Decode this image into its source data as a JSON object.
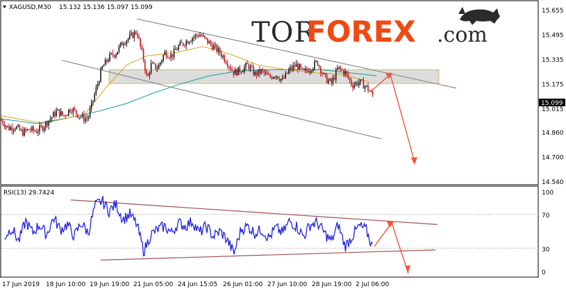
{
  "logo": {
    "part1": "TOR",
    "part2": "FOREX",
    "part3": ".com"
  },
  "chart_data": [
    {
      "type": "candlestick",
      "title": "XAGUSD,M30",
      "ohlc_label": "15.132 15.136 15.097 15.099",
      "last_price": "15.099",
      "y_ticks": [
        "15.655",
        "15.495",
        "15.335",
        "15.175",
        "15.015",
        "14.860",
        "14.700",
        "14.540"
      ],
      "ylim": [
        14.54,
        15.7
      ],
      "x_ticks": [
        "17 Jun 2019",
        "18 Jun 10:00",
        "19 Jun 19:00",
        "21 Jun 05:00",
        "24 Jun 15:05",
        "26 Jun 01:00",
        "27 Jun 10:00",
        "28 Jun 19:00",
        "2 Jul 06:00"
      ],
      "price_path": [
        [
          0,
          14.94
        ],
        [
          10,
          14.89
        ],
        [
          20,
          14.9
        ],
        [
          30,
          14.86
        ],
        [
          40,
          14.88
        ],
        [
          50,
          14.87
        ],
        [
          60,
          14.9
        ],
        [
          70,
          14.95
        ],
        [
          80,
          15.0
        ],
        [
          90,
          14.97
        ],
        [
          100,
          15.02
        ],
        [
          110,
          14.98
        ],
        [
          120,
          14.95
        ],
        [
          125,
          14.96
        ],
        [
          135,
          15.12
        ],
        [
          145,
          15.28
        ],
        [
          155,
          15.35
        ],
        [
          165,
          15.38
        ],
        [
          175,
          15.45
        ],
        [
          185,
          15.48
        ],
        [
          195,
          15.52
        ],
        [
          200,
          15.42
        ],
        [
          205,
          15.33
        ],
        [
          210,
          15.2
        ],
        [
          215,
          15.3
        ],
        [
          225,
          15.28
        ],
        [
          235,
          15.38
        ],
        [
          245,
          15.36
        ],
        [
          255,
          15.42
        ],
        [
          265,
          15.45
        ],
        [
          275,
          15.48
        ],
        [
          285,
          15.5
        ],
        [
          295,
          15.46
        ],
        [
          305,
          15.42
        ],
        [
          315,
          15.38
        ],
        [
          325,
          15.32
        ],
        [
          335,
          15.25
        ],
        [
          345,
          15.27
        ],
        [
          355,
          15.3
        ],
        [
          365,
          15.24
        ],
        [
          375,
          15.26
        ],
        [
          385,
          15.22
        ],
        [
          395,
          15.24
        ],
        [
          405,
          15.2
        ],
        [
          415,
          15.27
        ],
        [
          425,
          15.3
        ],
        [
          435,
          15.25
        ],
        [
          445,
          15.28
        ],
        [
          455,
          15.32
        ],
        [
          465,
          15.22
        ],
        [
          475,
          15.18
        ],
        [
          485,
          15.28
        ],
        [
          495,
          15.25
        ],
        [
          505,
          15.17
        ],
        [
          515,
          15.19
        ],
        [
          525,
          15.16
        ],
        [
          535,
          15.1
        ]
      ],
      "ma_slow": [
        [
          0,
          14.95
        ],
        [
          50,
          14.92
        ],
        [
          100,
          14.96
        ],
        [
          140,
          15.0
        ],
        [
          180,
          15.05
        ],
        [
          220,
          15.12
        ],
        [
          260,
          15.18
        ],
        [
          300,
          15.23
        ],
        [
          340,
          15.26
        ],
        [
          380,
          15.27
        ],
        [
          420,
          15.27
        ],
        [
          460,
          15.27
        ],
        [
          500,
          15.25
        ],
        [
          540,
          15.23
        ]
      ],
      "ma_fast": [
        [
          0,
          14.97
        ],
        [
          60,
          14.92
        ],
        [
          120,
          14.98
        ],
        [
          150,
          15.15
        ],
        [
          180,
          15.3
        ],
        [
          210,
          15.36
        ],
        [
          250,
          15.38
        ],
        [
          290,
          15.42
        ],
        [
          330,
          15.37
        ],
        [
          370,
          15.3
        ],
        [
          410,
          15.27
        ],
        [
          450,
          15.25
        ],
        [
          490,
          15.24
        ],
        [
          530,
          15.19
        ]
      ],
      "channel_upper": [
        [
          195,
          15.6
        ],
        [
          655,
          15.15
        ]
      ],
      "channel_lower": [
        [
          88,
          15.33
        ],
        [
          547,
          14.82
        ]
      ],
      "zone": {
        "low": 15.18,
        "high": 15.27,
        "x_start": 155,
        "x_end": 630
      },
      "forecast_arrow": [
        [
          535,
          15.14
        ],
        [
          560,
          15.24
        ],
        [
          595,
          14.67
        ]
      ]
    },
    {
      "type": "line",
      "title": "RSI(13) 29.7424",
      "y_ticks": [
        "100",
        "70",
        "30",
        "0"
      ],
      "ylim": [
        0,
        100
      ],
      "rsi_path": [
        [
          5,
          44
        ],
        [
          15,
          54
        ],
        [
          25,
          38
        ],
        [
          35,
          62
        ],
        [
          45,
          48
        ],
        [
          55,
          58
        ],
        [
          65,
          46
        ],
        [
          75,
          66
        ],
        [
          85,
          52
        ],
        [
          95,
          58
        ],
        [
          105,
          44
        ],
        [
          115,
          60
        ],
        [
          125,
          48
        ],
        [
          135,
          80
        ],
        [
          145,
          86
        ],
        [
          155,
          74
        ],
        [
          165,
          82
        ],
        [
          175,
          64
        ],
        [
          185,
          70
        ],
        [
          195,
          58
        ],
        [
          205,
          26
        ],
        [
          215,
          46
        ],
        [
          225,
          52
        ],
        [
          235,
          56
        ],
        [
          245,
          48
        ],
        [
          255,
          60
        ],
        [
          265,
          56
        ],
        [
          275,
          62
        ],
        [
          285,
          48
        ],
        [
          295,
          56
        ],
        [
          305,
          44
        ],
        [
          315,
          50
        ],
        [
          325,
          40
        ],
        [
          335,
          24
        ],
        [
          345,
          52
        ],
        [
          355,
          56
        ],
        [
          365,
          48
        ],
        [
          375,
          52
        ],
        [
          385,
          42
        ],
        [
          395,
          54
        ],
        [
          405,
          48
        ],
        [
          415,
          62
        ],
        [
          425,
          56
        ],
        [
          435,
          44
        ],
        [
          445,
          58
        ],
        [
          455,
          60
        ],
        [
          465,
          48
        ],
        [
          475,
          38
        ],
        [
          485,
          58
        ],
        [
          495,
          32
        ],
        [
          505,
          44
        ],
        [
          515,
          56
        ],
        [
          525,
          52
        ],
        [
          535,
          30
        ]
      ],
      "resistance": [
        [
          100,
          87
        ],
        [
          628,
          58
        ]
      ],
      "support": [
        [
          143,
          16
        ],
        [
          625,
          28
        ]
      ],
      "forecast_arrow": [
        [
          537,
          32
        ],
        [
          562,
          60
        ],
        [
          586,
          0
        ]
      ]
    }
  ]
}
